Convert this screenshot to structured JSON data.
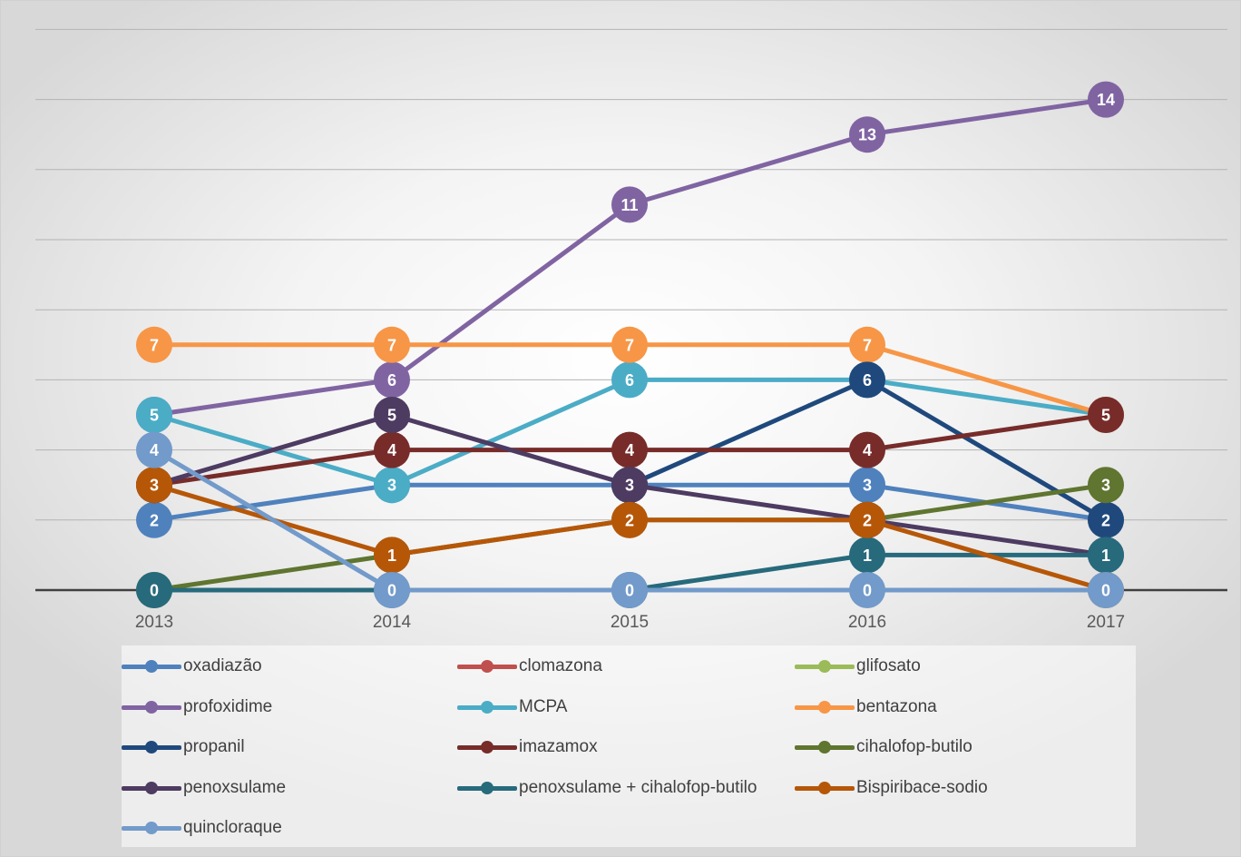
{
  "chart_data": {
    "type": "line",
    "categories": [
      "2013",
      "2014",
      "2015",
      "2016",
      "2017"
    ],
    "ylim": [
      0,
      16
    ],
    "grid": true,
    "legend_position": "bottom",
    "series": [
      {
        "name": "oxadiazão",
        "color": "#4F81BD",
        "values": [
          2,
          3,
          3,
          3,
          2
        ]
      },
      {
        "name": "clomazona",
        "color": "#C0504D",
        "values": [
          null,
          null,
          null,
          null,
          null
        ]
      },
      {
        "name": "glifosato",
        "color": "#9BBB59",
        "values": [
          null,
          null,
          null,
          null,
          null
        ]
      },
      {
        "name": "profoxidime",
        "color": "#8064A2",
        "values": [
          5,
          6,
          11,
          13,
          14
        ]
      },
      {
        "name": "MCPA",
        "color": "#4BACC6",
        "values": [
          5,
          3,
          6,
          6,
          5
        ]
      },
      {
        "name": "bentazona",
        "color": "#F79646",
        "values": [
          7,
          7,
          7,
          7,
          5
        ]
      },
      {
        "name": "propanil",
        "color": "#1F497D",
        "values": [
          null,
          null,
          3,
          6,
          2
        ]
      },
      {
        "name": "imazamox",
        "color": "#772C2A",
        "values": [
          3,
          4,
          4,
          4,
          5
        ]
      },
      {
        "name": "cihalofop-butilo",
        "color": "#5F7530",
        "values": [
          0,
          1,
          2,
          2,
          3
        ]
      },
      {
        "name": "penoxsulame",
        "color": "#4D3B62",
        "values": [
          3,
          5,
          3,
          2,
          1
        ]
      },
      {
        "name": "penoxsulame + cihalofop-butilo",
        "color": "#276A7C",
        "values": [
          0,
          0,
          0,
          1,
          1
        ]
      },
      {
        "name": "Bispiribace-sodio",
        "color": "#B65708",
        "values": [
          3,
          1,
          2,
          2,
          0
        ]
      },
      {
        "name": "quincloraque",
        "color": "#729ACA",
        "values": [
          4,
          0,
          0,
          0,
          0
        ]
      }
    ]
  }
}
